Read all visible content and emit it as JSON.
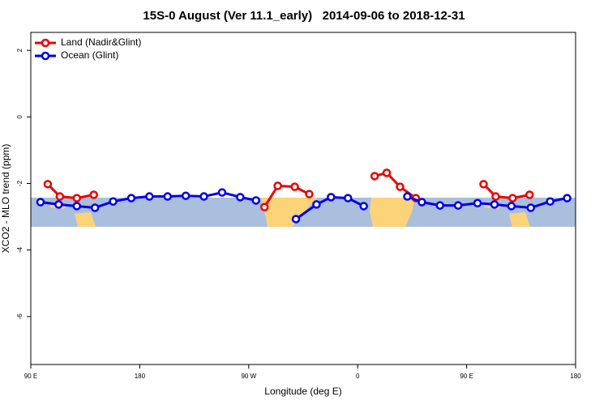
{
  "chart_data": {
    "type": "line",
    "title": "15S-0 August (Ver 11.1_early)   2014-09-06 to 2018-12-31",
    "x_label": "Longitude (deg E)",
    "y_label": "XCO2 - MLO trend (ppm)",
    "xlim": [
      90,
      540
    ],
    "ylim": [
      -7.44,
      2.54
    ],
    "xticks": [
      {
        "value": 90,
        "label": "90 E"
      },
      180,
      {
        "value": 270,
        "label": "90 W"
      },
      {
        "value": 360,
        "label": "0"
      },
      {
        "value": 450,
        "label": "90 E"
      },
      {
        "value": 540,
        "label": "180"
      }
    ],
    "yticks": [
      2,
      0,
      -2,
      -4,
      -6
    ],
    "legend": "top-left",
    "series": [
      {
        "name": "Land (Nadir&Glint)",
        "color": "#ee0000",
        "x": [
          104,
          114,
          128,
          142,
          210,
          283,
          294,
          308,
          320,
          347,
          374,
          384,
          395,
          408,
          436,
          464,
          474,
          488,
          502
        ],
        "values": [
          -2.02,
          -2.39,
          -2.44,
          -2.34,
          null,
          -2.71,
          -2.07,
          -2.1,
          -2.32,
          null,
          -1.78,
          -1.68,
          -2.1,
          -2.44,
          null,
          -2.02,
          -2.39,
          -2.44,
          -2.34
        ]
      },
      {
        "name": "Ocean (Glint)",
        "color": "#0000ee",
        "x": [
          98,
          113,
          128,
          143,
          158,
          173,
          188,
          203,
          218,
          233,
          248,
          263,
          276,
          292,
          309,
          326,
          338,
          352,
          365,
          383,
          401,
          413,
          428,
          443,
          459,
          473,
          487,
          503,
          519,
          533
        ],
        "values": [
          -2.56,
          -2.63,
          -2.68,
          -2.73,
          -2.54,
          -2.44,
          -2.39,
          -2.39,
          -2.37,
          -2.39,
          -2.27,
          -2.41,
          -2.51,
          null,
          -3.07,
          -2.63,
          -2.41,
          -2.44,
          -2.68,
          null,
          -2.39,
          -2.56,
          -2.66,
          -2.66,
          -2.59,
          -2.63,
          -2.68,
          -2.73,
          -2.54,
          -2.44
        ]
      }
    ]
  }
}
